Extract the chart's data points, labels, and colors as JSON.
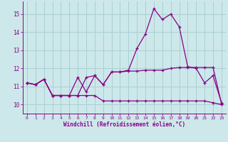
{
  "x": [
    0,
    1,
    2,
    3,
    4,
    5,
    6,
    7,
    8,
    9,
    10,
    11,
    12,
    13,
    14,
    15,
    16,
    17,
    18,
    19,
    20,
    21,
    22,
    23
  ],
  "line1": [
    11.2,
    11.1,
    11.4,
    10.5,
    10.5,
    10.5,
    11.5,
    10.7,
    11.6,
    11.1,
    11.8,
    11.8,
    11.9,
    13.1,
    13.9,
    15.3,
    14.7,
    15.0,
    14.3,
    12.1,
    12.0,
    11.2,
    11.6,
    10.1
  ],
  "line2": [
    11.2,
    11.1,
    11.4,
    10.5,
    10.5,
    10.5,
    10.5,
    11.5,
    11.6,
    11.1,
    11.8,
    11.8,
    11.85,
    11.85,
    11.9,
    11.9,
    11.9,
    12.0,
    12.05,
    12.05,
    12.05,
    12.05,
    12.05,
    10.05
  ],
  "line3": [
    11.2,
    11.1,
    11.4,
    10.5,
    10.5,
    10.5,
    10.5,
    10.5,
    10.5,
    10.2,
    10.2,
    10.2,
    10.2,
    10.2,
    10.2,
    10.2,
    10.2,
    10.2,
    10.2,
    10.2,
    10.2,
    10.2,
    10.1,
    10.0
  ],
  "background_color": "#cde8ea",
  "grid_color": "#aacfd2",
  "line_color": "#880088",
  "xlabel": "Windchill (Refroidissement éolien,°C)",
  "ylim": [
    9.5,
    15.7
  ],
  "xlim": [
    -0.5,
    23.5
  ],
  "yticks": [
    10,
    11,
    12,
    13,
    14,
    15
  ],
  "xticks": [
    0,
    1,
    2,
    3,
    4,
    5,
    6,
    7,
    8,
    9,
    10,
    11,
    12,
    13,
    14,
    15,
    16,
    17,
    18,
    19,
    20,
    21,
    22,
    23
  ]
}
